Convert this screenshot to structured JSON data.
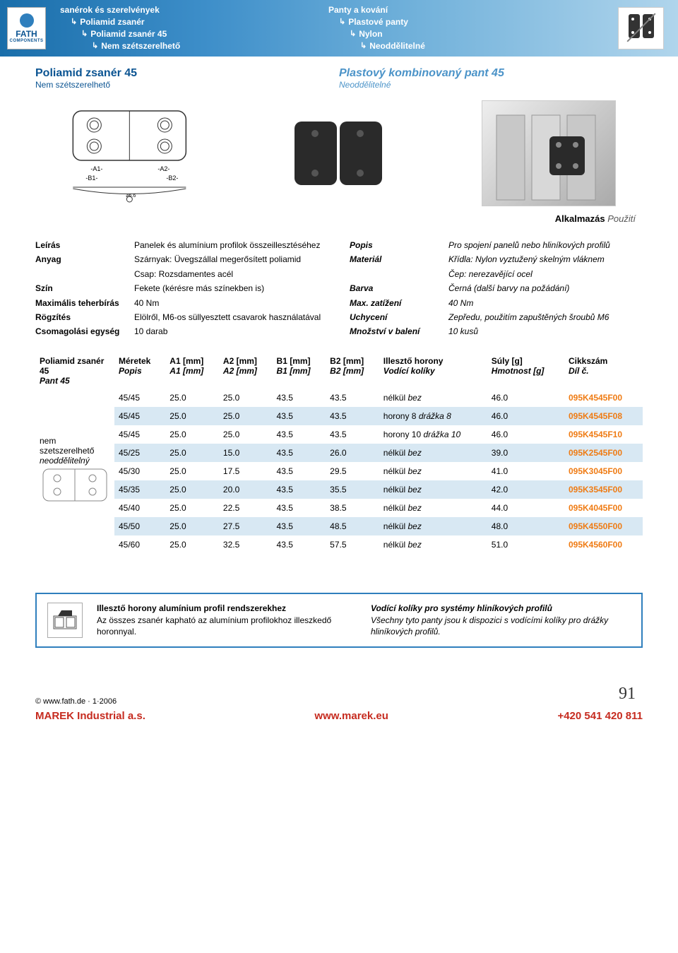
{
  "colors": {
    "brand_blue": "#0b5492",
    "light_blue": "#4b93c8",
    "orange": "#ef7b13",
    "red": "#c62b1f",
    "row_alt_bg": "#d8e8f3",
    "header_grad_start": "#1a6eaa",
    "header_grad_end": "#b0d5ec"
  },
  "logo": {
    "brand": "FATH",
    "sub": "COMPONENTS"
  },
  "breadcrumb_left": [
    {
      "text": "sanérok és szerelvények",
      "indent": 0
    },
    {
      "text": "Poliamid zsanér",
      "indent": 1
    },
    {
      "text": "Poliamid zsanér 45",
      "indent": 2
    },
    {
      "text": "Nem szétszerelhető",
      "indent": 3
    }
  ],
  "breadcrumb_right": [
    {
      "text": "Panty a kování",
      "indent": 0
    },
    {
      "text": "Plastové panty",
      "indent": 1
    },
    {
      "text": "Nylon",
      "indent": 2
    },
    {
      "text": "Neoddělitelné",
      "indent": 3
    }
  ],
  "title": {
    "hu": "Poliamid zsanér 45",
    "hu_sub": "Nem szétszerelhető",
    "cz": "Plastový kombinovaný pant 45",
    "cz_sub": "Neoddělitelné"
  },
  "use_label": {
    "hu": "Alkalmazás",
    "cz": "Použití"
  },
  "desc_left": [
    {
      "label": "Leírás",
      "value": "Panelek és alumínium profilok összeillesztéséhez"
    },
    {
      "label": "Anyag",
      "value": "Szárnyak: Üvegszállal megerősített poliamid"
    },
    {
      "label": "",
      "value": "Csap: Rozsdamentes acél"
    },
    {
      "label": "Szín",
      "value": "Fekete (kérésre más színekben is)"
    },
    {
      "label": "Maximális teherbírás",
      "value": "40 Nm"
    },
    {
      "label": "Rögzítés",
      "value": "Elölről, M6-os süllyesztett csavarok használatával"
    },
    {
      "label": "Csomagolási egység",
      "value": "10 darab"
    }
  ],
  "desc_right": [
    {
      "label": "Popis",
      "value": "Pro spojení panelů nebo hliníkových profilů"
    },
    {
      "label": "Materiál",
      "value": "Křídla: Nylon vyztužený skelným vláknem"
    },
    {
      "label": "",
      "value": "Čep: nerezavějící ocel"
    },
    {
      "label": "Barva",
      "value": "Černá (další barvy na požádání)"
    },
    {
      "label": "Max. zatížení",
      "value": "40 Nm"
    },
    {
      "label": "Uchycení",
      "value": "Zepředu, použitím zapuštěných šroubů M6"
    },
    {
      "label": "Množství v balení",
      "value": "10 kusů"
    }
  ],
  "table": {
    "headers": [
      {
        "hu": "Poliamid zsanér 45",
        "cz": "Pant 45"
      },
      {
        "hu": "Méretek",
        "cz": "Popis"
      },
      {
        "hu": "A1 [mm]",
        "cz": "A1 [mm]"
      },
      {
        "hu": "A2 [mm]",
        "cz": "A2 [mm]"
      },
      {
        "hu": "B1 [mm]",
        "cz": "B1 [mm]"
      },
      {
        "hu": "B2 [mm]",
        "cz": "B2 [mm]"
      },
      {
        "hu": "Illesztő horony",
        "cz": "Vodící kolíky"
      },
      {
        "hu": "Súly [g]",
        "cz": "Hmotnost [g]"
      },
      {
        "hu": "Cikkszám",
        "cz": "Díl č."
      }
    ],
    "first_label": {
      "hu": "nem szetszerelhető",
      "cz": "neoddělitelný"
    },
    "rows": [
      {
        "size": "45/45",
        "a1": "25.0",
        "a2": "25.0",
        "b1": "43.5",
        "b2": "43.5",
        "slot_hu": "nélkül",
        "slot_cz": "bez",
        "w": "46.0",
        "part": "095K4545F00"
      },
      {
        "size": "45/45",
        "a1": "25.0",
        "a2": "25.0",
        "b1": "43.5",
        "b2": "43.5",
        "slot_hu": "horony 8",
        "slot_cz": "drážka 8",
        "w": "46.0",
        "part": "095K4545F08"
      },
      {
        "size": "45/45",
        "a1": "25.0",
        "a2": "25.0",
        "b1": "43.5",
        "b2": "43.5",
        "slot_hu": "horony 10",
        "slot_cz": "drážka 10",
        "w": "46.0",
        "part": "095K4545F10"
      },
      {
        "size": "45/25",
        "a1": "25.0",
        "a2": "15.0",
        "b1": "43.5",
        "b2": "26.0",
        "slot_hu": "nélkül",
        "slot_cz": "bez",
        "w": "39.0",
        "part": "095K2545F00"
      },
      {
        "size": "45/30",
        "a1": "25.0",
        "a2": "17.5",
        "b1": "43.5",
        "b2": "29.5",
        "slot_hu": "nélkül",
        "slot_cz": "bez",
        "w": "41.0",
        "part": "095K3045F00"
      },
      {
        "size": "45/35",
        "a1": "25.0",
        "a2": "20.0",
        "b1": "43.5",
        "b2": "35.5",
        "slot_hu": "nélkül",
        "slot_cz": "bez",
        "w": "42.0",
        "part": "095K3545F00"
      },
      {
        "size": "45/40",
        "a1": "25.0",
        "a2": "22.5",
        "b1": "43.5",
        "b2": "38.5",
        "slot_hu": "nélkül",
        "slot_cz": "bez",
        "w": "44.0",
        "part": "095K4045F00"
      },
      {
        "size": "45/50",
        "a1": "25.0",
        "a2": "27.5",
        "b1": "43.5",
        "b2": "48.5",
        "slot_hu": "nélkül",
        "slot_cz": "bez",
        "w": "48.0",
        "part": "095K4550F00"
      },
      {
        "size": "45/60",
        "a1": "25.0",
        "a2": "32.5",
        "b1": "43.5",
        "b2": "57.5",
        "slot_hu": "nélkül",
        "slot_cz": "bez",
        "w": "51.0",
        "part": "095K4560F00"
      }
    ]
  },
  "note": {
    "hu_title": "Illesztő horony alumínium profil rendszerekhez",
    "hu_body": "Az összes zsanér kapható az alumínium profilokhoz illeszkedő horonnyal.",
    "cz_title": "Vodící kolíky pro systémy hliníkových profilů",
    "cz_body": "Všechny tyto panty jsou k dispozici s vodícími kolíky pro drážky hliníkových profilů."
  },
  "footer": {
    "copy": "© www.fath.de · 1·2006",
    "page": "91",
    "c1": "MAREK Industrial a.s.",
    "c2": "www.marek.eu",
    "c3": "+420 541 420 811"
  }
}
